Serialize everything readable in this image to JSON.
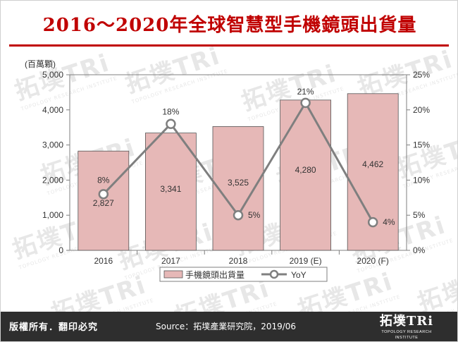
{
  "header": {
    "title": "2016～2020年全球智慧型手機鏡頭出貨量"
  },
  "chart_data": {
    "type": "bar",
    "categories": [
      "2016",
      "2017",
      "2018",
      "2019 (E)",
      "2020 (F)"
    ],
    "series": [
      {
        "name": "手機鏡頭出貨量",
        "kind": "bar",
        "axis": "left",
        "values": [
          2827,
          3341,
          3525,
          4280,
          4462
        ],
        "labels": [
          "2,827",
          "3,341",
          "3,525",
          "4,280",
          "4,462"
        ],
        "color": "#e6b8b7"
      },
      {
        "name": "YoY",
        "kind": "line",
        "axis": "right",
        "values": [
          8,
          18,
          5,
          21,
          4
        ],
        "labels": [
          "8%",
          "18%",
          "5%",
          "21%",
          "4%"
        ],
        "color": "#7f7f7f"
      }
    ],
    "y_left": {
      "unit": "(百萬顆)",
      "min": 0,
      "max": 5000,
      "ticks": [
        0,
        1000,
        2000,
        3000,
        4000,
        5000
      ],
      "tick_labels": [
        "0",
        "1,000",
        "2,000",
        "3,000",
        "4,000",
        "5,000"
      ]
    },
    "y_right": {
      "min": 0,
      "max": 25,
      "ticks": [
        0,
        5,
        10,
        15,
        20,
        25
      ],
      "tick_labels": [
        "0%",
        "5%",
        "10%",
        "15%",
        "20%",
        "25%"
      ]
    },
    "grid": false,
    "legend_position": "bottom"
  },
  "footer": {
    "rights": "版權所有．翻印必究",
    "source": "Source：拓墣產業研究院，2019/06",
    "logo_cn": "拓墣TRi",
    "logo_en": "TOPOLOGY RESEARCH INSTITUTE"
  },
  "watermark": {
    "cn": "拓墣TRi",
    "en": "TOPOLOGY RESEARCH INSTITUTE"
  }
}
